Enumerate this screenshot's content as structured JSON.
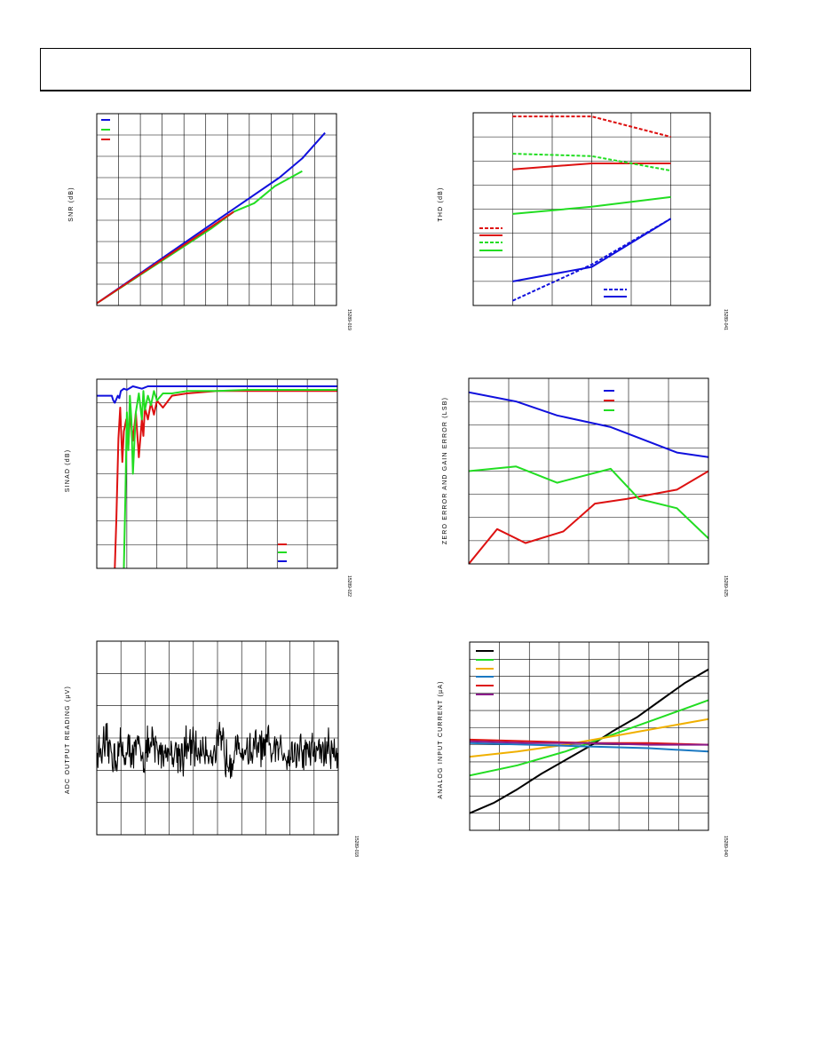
{
  "header": {
    "title": ""
  },
  "chart_data": [
    {
      "id": "snr",
      "type": "line",
      "ylabel": "SNR (dB)",
      "figure_id": "15289-019",
      "xlim": [
        0,
        10.5
      ],
      "ylim": [
        0,
        9
      ],
      "grid": true,
      "legend": "top-left",
      "series": [
        {
          "name": "",
          "color": "#1010dd",
          "x": [
            0,
            5,
            8,
            9,
            10
          ],
          "y": [
            0.1,
            3.8,
            6.0,
            6.9,
            8.1
          ]
        },
        {
          "name": "",
          "color": "#22dd22",
          "x": [
            0,
            5,
            6,
            6.9,
            7.8,
            9
          ],
          "y": [
            0.1,
            3.6,
            4.4,
            4.8,
            5.6,
            6.3
          ]
        },
        {
          "name": "",
          "color": "#dd1111",
          "x": [
            0,
            6
          ],
          "y": [
            0.1,
            4.4
          ]
        }
      ]
    },
    {
      "id": "thd",
      "type": "line",
      "ylabel": "THD (dB)",
      "figure_id": "15289-041",
      "xlim": [
        0,
        6
      ],
      "ylim": [
        0,
        8
      ],
      "grid": true,
      "legend": "center-left / bottom-right",
      "series": [
        {
          "name": "",
          "color": "#dd1111",
          "dashed": true,
          "x": [
            1,
            3,
            5
          ],
          "y": [
            7.85,
            7.85,
            7.0
          ]
        },
        {
          "name": "",
          "color": "#dd1111",
          "dashed": false,
          "x": [
            1,
            3,
            5
          ],
          "y": [
            5.65,
            5.9,
            5.9
          ]
        },
        {
          "name": "",
          "color": "#22dd22",
          "dashed": true,
          "x": [
            1,
            3,
            5
          ],
          "y": [
            6.3,
            6.2,
            5.6
          ]
        },
        {
          "name": "",
          "color": "#22dd22",
          "dashed": false,
          "x": [
            1,
            3,
            5
          ],
          "y": [
            3.8,
            4.1,
            4.5
          ]
        },
        {
          "name": "",
          "color": "#1010dd",
          "dashed": true,
          "x": [
            1,
            3,
            5
          ],
          "y": [
            0.2,
            1.7,
            3.6
          ]
        },
        {
          "name": "",
          "color": "#1010dd",
          "dashed": false,
          "x": [
            1,
            3,
            5
          ],
          "y": [
            1.0,
            1.6,
            3.6
          ]
        }
      ]
    },
    {
      "id": "sinad",
      "type": "line",
      "ylabel": "SINAD (dB)",
      "figure_id": "15289-022",
      "xlim": [
        0,
        8
      ],
      "ylim": [
        0,
        8
      ],
      "grid": true,
      "legend": "bottom-right",
      "series": [
        {
          "name": "",
          "color": "#dd1111",
          "x": [
            0.6,
            0.65,
            0.72,
            0.78,
            0.85,
            0.9,
            0.98,
            1.05,
            1.12,
            1.2,
            1.3,
            1.4,
            1.5,
            1.55,
            1.6,
            1.7,
            1.8,
            1.9,
            2.0,
            2.2,
            2.5,
            3,
            4,
            5,
            6,
            7,
            8
          ],
          "y": [
            0,
            2.0,
            5.5,
            6.8,
            4.5,
            5.8,
            6.3,
            5.2,
            6.6,
            5.4,
            6.6,
            4.7,
            6.3,
            5.6,
            6.8,
            6.3,
            7.0,
            6.5,
            7.1,
            6.8,
            7.3,
            7.4,
            7.5,
            7.5,
            7.5,
            7.5,
            7.5
          ]
        },
        {
          "name": "",
          "color": "#22dd22",
          "x": [
            0.9,
            0.95,
            1.0,
            1.05,
            1.1,
            1.15,
            1.2,
            1.3,
            1.4,
            1.5,
            1.55,
            1.6,
            1.7,
            1.8,
            1.9,
            2.0,
            2.2,
            2.5,
            3,
            4,
            5,
            6,
            7,
            8
          ],
          "y": [
            0,
            3.0,
            6.6,
            5.0,
            7.3,
            6.3,
            4.0,
            6.6,
            7.4,
            6.3,
            7.5,
            6.7,
            7.3,
            6.9,
            7.5,
            7.1,
            7.4,
            7.4,
            7.5,
            7.5,
            7.55,
            7.55,
            7.55,
            7.55
          ]
        },
        {
          "name": "",
          "color": "#1010dd",
          "x": [
            0,
            0.5,
            0.55,
            0.6,
            0.7,
            0.75,
            0.8,
            0.9,
            1.0,
            1.2,
            1.5,
            1.7,
            2.0,
            2.5,
            3,
            4,
            5,
            6,
            7,
            8
          ],
          "y": [
            7.3,
            7.3,
            7.1,
            7.0,
            7.3,
            7.2,
            7.5,
            7.6,
            7.55,
            7.7,
            7.6,
            7.7,
            7.7,
            7.7,
            7.7,
            7.7,
            7.7,
            7.7,
            7.7,
            7.7
          ]
        }
      ]
    },
    {
      "id": "zero-gain-error",
      "type": "line",
      "ylabel": "ZERO ERROR AND GAIN ERROR (LSB)",
      "figure_id": "15289-025",
      "xlim": [
        0,
        7.6
      ],
      "ylim": [
        0,
        8
      ],
      "grid": true,
      "legend": "top-right",
      "series": [
        {
          "name": "",
          "color": "#1010dd",
          "x": [
            0,
            1.5,
            2.8,
            4.5,
            6.6,
            7.6
          ],
          "y": [
            7.4,
            7.0,
            6.4,
            5.9,
            4.8,
            4.6
          ]
        },
        {
          "name": "",
          "color": "#dd1111",
          "x": [
            0,
            0.9,
            1.8,
            3,
            4,
            5,
            6.6,
            7.6
          ],
          "y": [
            0,
            1.5,
            0.9,
            1.4,
            2.6,
            2.8,
            3.2,
            4.0
          ]
        },
        {
          "name": "",
          "color": "#22dd22",
          "x": [
            0,
            1.5,
            2.8,
            4.5,
            5.4,
            6.6,
            7.6
          ],
          "y": [
            4.0,
            4.2,
            3.5,
            4.1,
            2.8,
            2.4,
            1.1
          ]
        }
      ]
    },
    {
      "id": "adc-noise",
      "type": "line",
      "ylabel": "ADC OUTPUT READING (µV)",
      "figure_id": "15289-018",
      "xlim": [
        0,
        1000
      ],
      "ylim": [
        0,
        6
      ],
      "grid": true,
      "legend": "none",
      "series": [
        {
          "name": "",
          "color": "#000000",
          "noise_center": 2.6,
          "noise_amplitude": 0.9,
          "samples": 420
        }
      ]
    },
    {
      "id": "analog-input-current",
      "type": "line",
      "ylabel": "ANALOG INPUT CURRENT (µA)",
      "figure_id": "15289-040",
      "xlim": [
        0,
        8
      ],
      "ylim": [
        0,
        11
      ],
      "grid": true,
      "legend": "top-left",
      "series": [
        {
          "name": "",
          "color": "#000000",
          "x": [
            0,
            0.8,
            1.6,
            2.4,
            3.2,
            4,
            4.8,
            5.6,
            6.4,
            7.2,
            8
          ],
          "y": [
            1.0,
            1.6,
            2.4,
            3.3,
            4.1,
            4.9,
            5.8,
            6.6,
            7.6,
            8.6,
            9.4
          ]
        },
        {
          "name": "",
          "color": "#22dd22",
          "x": [
            0,
            1.6,
            3.2,
            4.8,
            6.4,
            8
          ],
          "y": [
            3.2,
            3.8,
            4.6,
            5.6,
            6.6,
            7.6
          ]
        },
        {
          "name": "",
          "color": "#f0b000",
          "x": [
            0,
            1.6,
            3.2,
            4.8,
            6.4,
            8
          ],
          "y": [
            4.3,
            4.6,
            5.0,
            5.5,
            6.0,
            6.5
          ]
        },
        {
          "name": "",
          "color": "#1a78c2",
          "x": [
            0,
            2,
            4,
            6,
            8
          ],
          "y": [
            5.1,
            5.0,
            4.9,
            4.8,
            4.6
          ]
        },
        {
          "name": "",
          "color": "#dd1111",
          "x": [
            0,
            2,
            4,
            6,
            8
          ],
          "y": [
            5.3,
            5.2,
            5.1,
            5.1,
            5.0
          ]
        },
        {
          "name": "",
          "color": "#8a1a8a",
          "x": [
            0,
            2,
            4,
            6,
            8
          ],
          "y": [
            5.2,
            5.1,
            5.1,
            5.0,
            5.0
          ]
        }
      ]
    }
  ]
}
